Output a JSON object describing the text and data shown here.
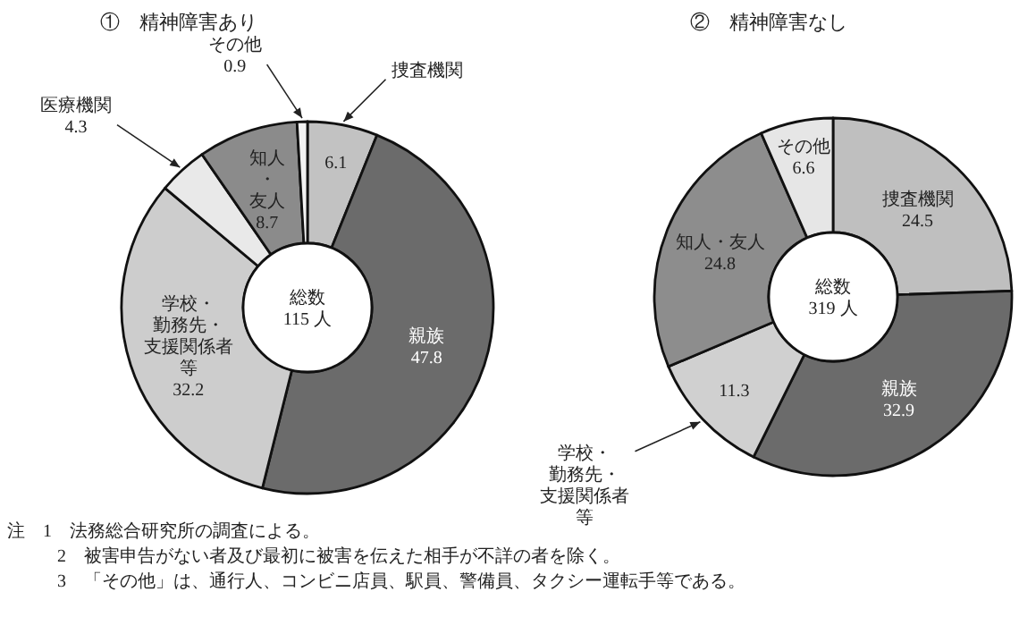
{
  "chart_data": [
    {
      "type": "donut",
      "title": "①　精神障害あり",
      "subtitle": "総数\n115 人",
      "categories": [
        "捜査機関",
        "親族",
        "学校・勤務先・支援関係者等",
        "医療機関",
        "知人・友人",
        "その他"
      ],
      "values": [
        6.1,
        47.8,
        32.2,
        4.3,
        8.7,
        0.9
      ],
      "colors": [
        "#c2c2c2",
        "#6b6b6b",
        "#cdcdcd",
        "#e9e9e9",
        "#8b8b8b",
        "#f2f2f2"
      ],
      "data_labels": true,
      "legend": false,
      "annotations": [
        "注　1　法務総合研究所の調査による。",
        "2　被害申告がない者及び最初に被害を伝えた相手が不詳の者を除く。",
        "3　「その他」は、通行人、コンビニ店員、駅員、警備員、タクシー運転手等である。"
      ]
    },
    {
      "type": "donut",
      "title": "②　精神障害なし",
      "subtitle": "総数\n319 人",
      "categories": [
        "捜査機関",
        "親族",
        "学校・勤務先・支援関係者等",
        "知人・友人",
        "その他"
      ],
      "values": [
        24.5,
        32.9,
        11.3,
        24.8,
        6.6
      ],
      "colors": [
        "#bfbfbf",
        "#6b6b6b",
        "#d0d0d0",
        "#8d8d8d",
        "#e6e6e6"
      ],
      "data_labels": true,
      "legend": false
    }
  ]
}
